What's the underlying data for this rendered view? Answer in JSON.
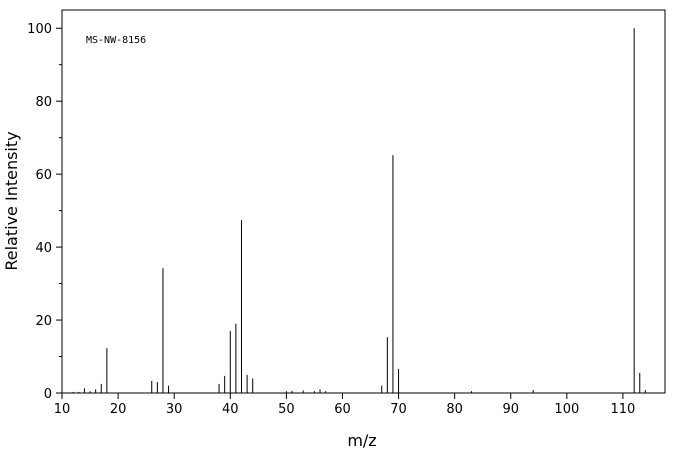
{
  "chart_data": {
    "type": "stem",
    "annotation": "MS-NW-8156",
    "xlabel": "m/z",
    "ylabel": "Relative Intensity",
    "x": [
      12,
      13,
      14,
      15,
      16,
      17,
      18,
      26,
      27,
      28,
      29,
      38,
      39,
      40,
      41,
      42,
      43,
      44,
      50,
      51,
      53,
      55,
      56,
      57,
      67,
      68,
      69,
      70,
      83,
      94,
      112,
      113,
      114
    ],
    "values": [
      0.3,
      0.3,
      1.3,
      0.5,
      1,
      2.5,
      12.3,
      3.3,
      3,
      34.2,
      2,
      2.5,
      4.7,
      17,
      19,
      47.4,
      5,
      4,
      0.5,
      0.6,
      0.7,
      0.5,
      1,
      0.5,
      2,
      15.3,
      65.2,
      6.6,
      0.5,
      0.8,
      100,
      5.5,
      0.8
    ],
    "color": "#000000",
    "xlim": [
      10,
      117.5
    ],
    "ylim": [
      0,
      105
    ],
    "xticks": [
      10,
      20,
      30,
      40,
      50,
      60,
      70,
      80,
      90,
      100,
      110
    ],
    "yticks": [
      0,
      20,
      40,
      60,
      80,
      100
    ],
    "yminor_ticks": [
      10,
      30,
      50,
      70,
      90
    ]
  }
}
